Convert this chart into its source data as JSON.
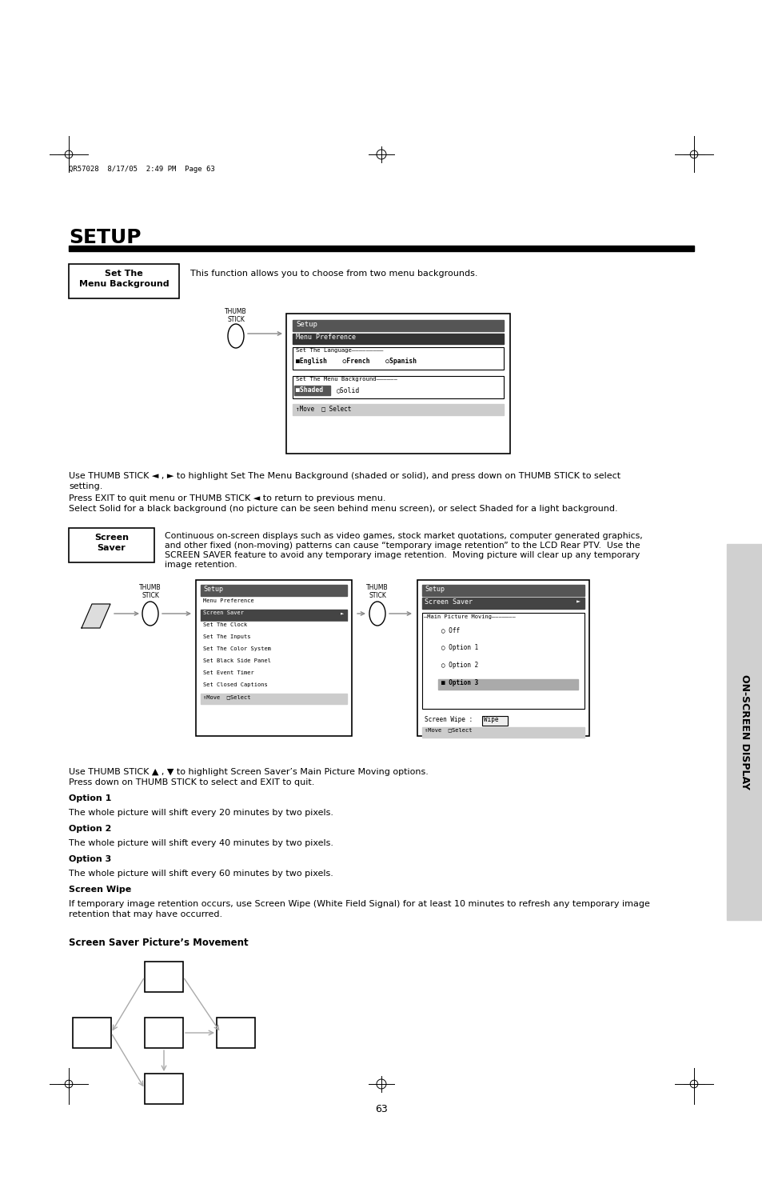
{
  "bg_color": "#ffffff",
  "title": "SETUP",
  "page_number": "63",
  "header_text": "QR57028  8/17/05  2:49 PM  Page 63",
  "sidebar_text": "ON-SCREEN DISPLAY",
  "section1_label_line1": "Set The",
  "section1_label_line2": "Menu Background",
  "section1_desc": "This function allows you to choose from two menu backgrounds.",
  "section1_body1": "Use THUMB STICK ◄ , ► to highlight Set The Menu Background (shaded or solid), and press down on THUMB STICK to select\nsetting.",
  "section1_body2": "Press EXIT to quit menu or THUMB STICK ◄ to return to previous menu.\nSelect Solid for a black background (no picture can be seen behind menu screen), or select Shaded for a light background.",
  "section2_label_line1": "Screen",
  "section2_label_line2": "Saver",
  "section2_desc_line1": "Continuous on-screen displays such as video games, stock market quotations, computer generated graphics,",
  "section2_desc_line2": "and other fixed (non-moving) patterns can cause “temporary image retention” to the LCD Rear PTV.  Use the",
  "section2_desc_line3": "SCREEN SAVER feature to avoid any temporary image retention.  Moving picture will clear up any temporary",
  "section2_desc_line4": "image retention.",
  "section2_body1_line1": "Use THUMB STICK ▲ , ▼ to highlight Screen Saver’s Main Picture Moving options.",
  "section2_body1_line2": "Press down on THUMB STICK to select and EXIT to quit.",
  "option1_title": "Option 1",
  "option1_text": "The whole picture will shift every 20 minutes by two pixels.",
  "option2_title": "Option 2",
  "option2_text": "The whole picture will shift every 40 minutes by two pixels.",
  "option3_title": "Option 3",
  "option3_text": "The whole picture will shift every 60 minutes by two pixels.",
  "screenwipe_title": "Screen Wipe",
  "screenwipe_text_line1": "If temporary image retention occurs, use Screen Wipe (White Field Signal) for at least 10 minutes to refresh any temporary image",
  "screenwipe_text_line2": "retention that may have occurred.",
  "movement_title": "Screen Saver Picture’s Movement",
  "menu_items_left": [
    "Menu Preference",
    "Screen Saver",
    "Set The Clock",
    "Set The Inputs",
    "Set The Color System",
    "Set Black Side Panel",
    "Set Event Timer",
    "Set Closed Captions"
  ]
}
